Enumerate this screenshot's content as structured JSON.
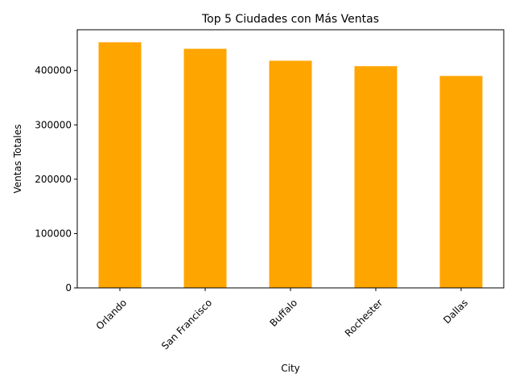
{
  "chart_data": {
    "type": "bar",
    "title": "Top 5 Ciudades con Más Ventas",
    "xlabel": "City",
    "ylabel": "Ventas Totales",
    "categories": [
      "Orlando",
      "San Francisco",
      "Buffalo",
      "Rochester",
      "Dallas"
    ],
    "values": [
      452000,
      440000,
      418000,
      408000,
      390000
    ],
    "ylim": [
      0,
      475000
    ],
    "yticks": [
      0,
      100000,
      200000,
      300000,
      400000
    ],
    "ytick_labels": [
      "0",
      "100000",
      "200000",
      "300000",
      "400000"
    ],
    "x_tick_rotation_deg": 45,
    "bar_color": "#ffa500",
    "grid": false,
    "legend": "none"
  }
}
